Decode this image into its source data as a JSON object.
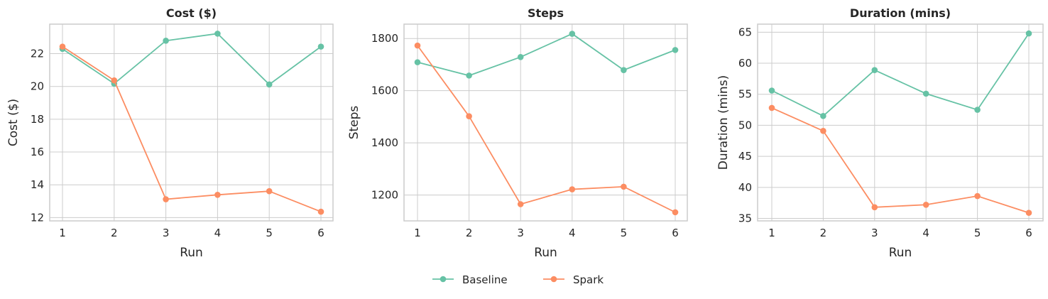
{
  "colors": {
    "Baseline": "#66c2a5",
    "Spark": "#fc8d62"
  },
  "legend": {
    "placement": "bottom-center",
    "entries": [
      "Baseline",
      "Spark"
    ]
  },
  "chart_data": [
    {
      "type": "line",
      "title": "Cost ($)",
      "xlabel": "Run",
      "ylabel": "Cost ($)",
      "x": [
        1,
        2,
        3,
        4,
        5,
        6
      ],
      "xticks": [
        "1",
        "2",
        "3",
        "4",
        "5",
        "6"
      ],
      "yticks": [
        12,
        14,
        16,
        18,
        20,
        22
      ],
      "ylim": [
        11.8,
        23.8
      ],
      "grid": true,
      "series": [
        {
          "name": "Baseline",
          "values": [
            22.29,
            20.17,
            22.79,
            23.22,
            20.12,
            22.43
          ]
        },
        {
          "name": "Spark",
          "values": [
            22.43,
            20.37,
            13.12,
            13.39,
            13.61,
            12.36
          ]
        }
      ]
    },
    {
      "type": "line",
      "title": "Steps",
      "xlabel": "Run",
      "ylabel": "Steps",
      "x": [
        1,
        2,
        3,
        4,
        5,
        6
      ],
      "xticks": [
        "1",
        "2",
        "3",
        "4",
        "5",
        "6"
      ],
      "yticks": [
        1200,
        1400,
        1600,
        1800
      ],
      "ylim": [
        1101,
        1855
      ],
      "grid": true,
      "series": [
        {
          "name": "Baseline",
          "values": [
            1709,
            1658,
            1729,
            1818,
            1679,
            1756
          ]
        },
        {
          "name": "Spark",
          "values": [
            1773,
            1502,
            1165,
            1222,
            1232,
            1134
          ]
        }
      ]
    },
    {
      "type": "line",
      "title": "Duration (mins)",
      "xlabel": "Run",
      "ylabel": "Duration (mins)",
      "x": [
        1,
        2,
        3,
        4,
        5,
        6
      ],
      "xticks": [
        "1",
        "2",
        "3",
        "4",
        "5",
        "6"
      ],
      "yticks": [
        35,
        40,
        45,
        50,
        55,
        60,
        65
      ],
      "ylim": [
        34.6,
        66.3
      ],
      "grid": true,
      "series": [
        {
          "name": "Baseline",
          "values": [
            55.6,
            51.5,
            58.9,
            55.1,
            52.5,
            64.8
          ]
        },
        {
          "name": "Spark",
          "values": [
            52.8,
            49.1,
            36.8,
            37.2,
            38.6,
            35.9
          ]
        }
      ]
    }
  ]
}
